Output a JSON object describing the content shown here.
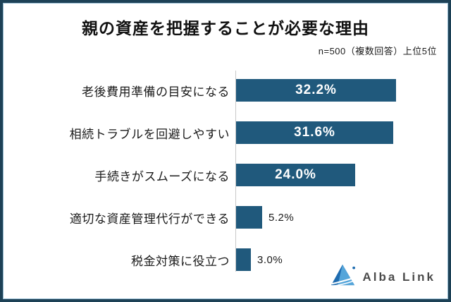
{
  "title": "親の資産を把握することが必要な理由",
  "note": "n=500（複数回答）上位5位",
  "chart_data": {
    "type": "bar",
    "orientation": "horizontal",
    "title": "親の資産を把握することが必要な理由",
    "subtitle": "n=500（複数回答）上位5位",
    "categories": [
      "老後費用準備の目安になる",
      "相続トラブルを回避しやすい",
      "手続きがスムーズになる",
      "適切な資産管理代行ができる",
      "税金対策に役立つ"
    ],
    "values": [
      32.2,
      31.6,
      24.0,
      5.2,
      3.0
    ],
    "value_labels": [
      "32.2%",
      "31.6%",
      "24.0%",
      "5.2%",
      "3.0%"
    ],
    "value_positions": [
      "inside",
      "inside",
      "inside",
      "outside",
      "outside"
    ],
    "unit": "%",
    "xlim": [
      0,
      42
    ],
    "grid": false,
    "legend": false,
    "bar_color": "#20597c",
    "axis_line_color": "#c9c9c9",
    "value_label_inside_color": "#ffffff",
    "value_label_outside_color": "#1a1a1a"
  },
  "logo": {
    "text": "Alba Link",
    "icon": "alba-link-triangle-logo",
    "icon_colors": {
      "dark_blue": "#1e6cb0",
      "light_blue": "#54a5da"
    }
  },
  "frame": {
    "border_color": "#1d4156"
  }
}
